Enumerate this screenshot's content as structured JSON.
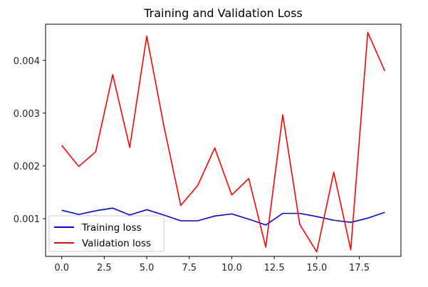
{
  "chart_data": {
    "type": "line",
    "title": "Training and Validation Loss",
    "xlabel": "",
    "ylabel": "",
    "xlim": [
      -0.95,
      19.95
    ],
    "ylim": [
      0.000285,
      0.004685
    ],
    "grid": false,
    "legend_position": "lower-left",
    "x_ticks": [
      0.0,
      2.5,
      5.0,
      7.5,
      10.0,
      12.5,
      15.0,
      17.5
    ],
    "x_tick_labels": [
      "0.0",
      "2.5",
      "5.0",
      "7.5",
      "10.0",
      "12.5",
      "15.0",
      "17.5"
    ],
    "y_ticks": [
      0.001,
      0.002,
      0.003,
      0.004
    ],
    "y_tick_labels": [
      "0.001",
      "0.002",
      "0.003",
      "0.004"
    ],
    "x": [
      0,
      1,
      2,
      3,
      4,
      5,
      6,
      7,
      8,
      9,
      10,
      11,
      12,
      13,
      14,
      15,
      16,
      17,
      18,
      19
    ],
    "series": [
      {
        "name": "Training loss",
        "color": "#0000ff",
        "values": [
          0.00116,
          0.00108,
          0.00115,
          0.0012,
          0.00107,
          0.00117,
          0.00107,
          0.00096,
          0.00096,
          0.00105,
          0.00109,
          0.00099,
          0.00088,
          0.0011,
          0.0011,
          0.00104,
          0.00097,
          0.00093,
          0.00101,
          0.00112
        ]
      },
      {
        "name": "Validation loss",
        "color": "#ff0000",
        "values": [
          0.00239,
          0.00199,
          0.00227,
          0.00373,
          0.00235,
          0.00446,
          0.00277,
          0.00125,
          0.00163,
          0.00234,
          0.00145,
          0.00176,
          0.00046,
          0.00297,
          0.00089,
          0.00037,
          0.00188,
          0.00041,
          0.00453,
          0.0038
        ]
      }
    ]
  }
}
